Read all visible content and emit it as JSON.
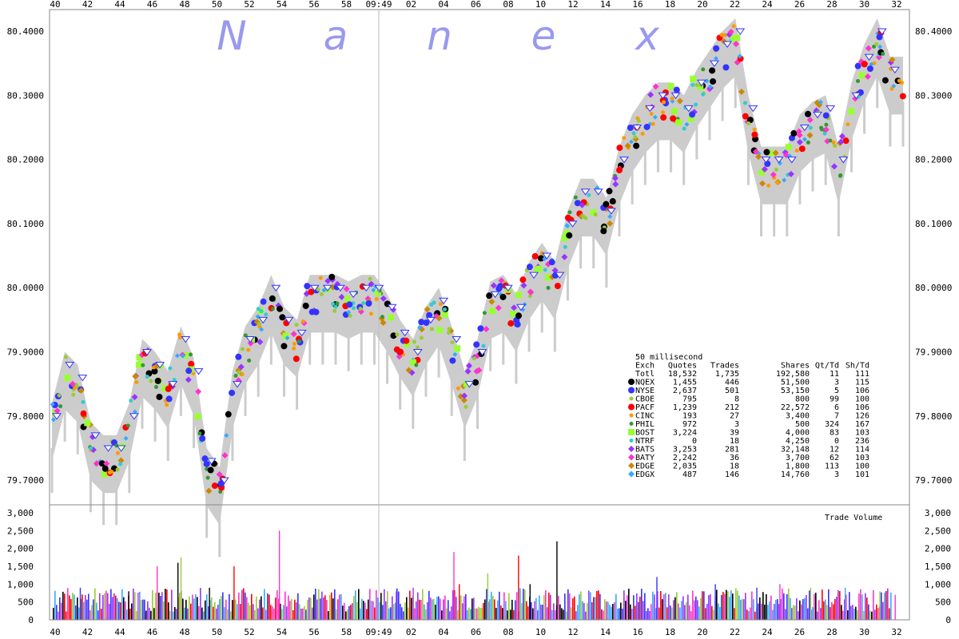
{
  "chart_data": {
    "type": "scatter",
    "watermark": [
      "N",
      "a",
      "n",
      "e",
      "x"
    ],
    "x_ticks_top": [
      "40",
      "42",
      "44",
      "46",
      "48",
      "50",
      "52",
      "54",
      "56",
      "58",
      "09:49",
      "02",
      "04",
      "06",
      "08",
      "10",
      "12",
      "14",
      "16",
      "18",
      "20",
      "22",
      "24",
      "26",
      "28",
      "30",
      "32"
    ],
    "x_ticks_bottom": [
      "40",
      "42",
      "44",
      "46",
      "48",
      "50",
      "52",
      "54",
      "56",
      "58",
      "09:49",
      "02",
      "04",
      "06",
      "08",
      "10",
      "12",
      "14",
      "16",
      "18",
      "20",
      "22",
      "24",
      "26",
      "28",
      "30",
      "32"
    ],
    "price_ticks": [
      "80.4000",
      "80.3000",
      "80.2000",
      "80.1000",
      "80.0000",
      "79.9000",
      "79.8000",
      "79.7000"
    ],
    "ylim": [
      79.65,
      80.42
    ],
    "volume_ticks": [
      "3,000",
      "2,500",
      "2,000",
      "1,500",
      "1,000",
      "500",
      "0"
    ],
    "volume_ylim": [
      0,
      3000
    ],
    "volume_label": "Trade Volume",
    "price_trace": [
      [
        0,
        79.8
      ],
      [
        1,
        79.88
      ],
      [
        2,
        79.86
      ],
      [
        3,
        79.77
      ],
      [
        4,
        79.75
      ],
      [
        5,
        79.75
      ],
      [
        6,
        79.8
      ],
      [
        7,
        79.9
      ],
      [
        8,
        79.88
      ],
      [
        9,
        79.85
      ],
      [
        10,
        79.92
      ],
      [
        11,
        79.87
      ],
      [
        12,
        79.73
      ],
      [
        13,
        79.7
      ],
      [
        14,
        79.85
      ],
      [
        15,
        79.92
      ],
      [
        16,
        79.95
      ],
      [
        17,
        80.0
      ],
      [
        18,
        79.95
      ],
      [
        19,
        79.93
      ],
      [
        20,
        80.0
      ],
      [
        21,
        80.0
      ],
      [
        22,
        80.0
      ],
      [
        23,
        79.99
      ],
      [
        24,
        80.0
      ],
      [
        25,
        80.0
      ],
      [
        26,
        79.97
      ],
      [
        27,
        79.93
      ],
      [
        28,
        79.9
      ],
      [
        29,
        79.95
      ],
      [
        30,
        79.98
      ],
      [
        31,
        79.92
      ],
      [
        32,
        79.85
      ],
      [
        33,
        79.9
      ],
      [
        34,
        79.99
      ],
      [
        35,
        80.0
      ],
      [
        36,
        79.97
      ],
      [
        37,
        80.02
      ],
      [
        38,
        80.05
      ],
      [
        39,
        80.02
      ],
      [
        40,
        80.1
      ],
      [
        41,
        80.15
      ],
      [
        42,
        80.15
      ],
      [
        43,
        80.12
      ],
      [
        44,
        80.2
      ],
      [
        45,
        80.25
      ],
      [
        46,
        80.28
      ],
      [
        47,
        80.3
      ],
      [
        48,
        80.3
      ],
      [
        49,
        80.28
      ],
      [
        50,
        80.32
      ],
      [
        51,
        80.35
      ],
      [
        52,
        80.38
      ],
      [
        53,
        80.4
      ],
      [
        54,
        80.28
      ],
      [
        55,
        80.2
      ],
      [
        56,
        80.2
      ],
      [
        57,
        80.2
      ],
      [
        58,
        80.25
      ],
      [
        59,
        80.27
      ],
      [
        60,
        80.28
      ],
      [
        61,
        80.2
      ],
      [
        62,
        80.3
      ],
      [
        63,
        80.36
      ],
      [
        64,
        80.4
      ],
      [
        65,
        80.34
      ],
      [
        66,
        80.34
      ]
    ],
    "volume_spikes": [
      [
        4.0,
        900
      ],
      [
        10.3,
        800
      ],
      [
        14.0,
        1500
      ],
      [
        16.7,
        1600
      ],
      [
        17.1,
        1750
      ],
      [
        20.8,
        900
      ],
      [
        24.0,
        1500
      ],
      [
        29.9,
        2500
      ],
      [
        45.1,
        800
      ],
      [
        47.3,
        900
      ],
      [
        52.6,
        1900
      ],
      [
        53.3,
        1000
      ],
      [
        57.0,
        1300
      ],
      [
        61.0,
        1800
      ],
      [
        62.5,
        1000
      ],
      [
        66.0,
        2200
      ],
      [
        79.0,
        1200
      ],
      [
        86.6,
        1000
      ],
      [
        92.0,
        900
      ],
      [
        95.0,
        1000
      ],
      [
        99.0,
        900
      ],
      [
        103.5,
        900
      ],
      [
        108.0,
        800
      ],
      [
        110.0,
        700
      ]
    ],
    "legend": {
      "interval": "50 millisecond",
      "columns": [
        "Exch",
        "Quotes",
        "Trades",
        "Shares",
        "Qt/Td",
        "Sh/Td"
      ],
      "rows": [
        {
          "exch": "Totl",
          "quotes": "18,532",
          "trades": "1,735",
          "shares": "192,580",
          "qt_td": "11",
          "sh_td": "111",
          "color": "",
          "marker": "none"
        },
        {
          "exch": "NQEX",
          "quotes": "1,455",
          "trades": "446",
          "shares": "51,500",
          "qt_td": "3",
          "sh_td": "115",
          "color": "#000000",
          "marker": "circle-icon"
        },
        {
          "exch": "NYSE",
          "quotes": "2,637",
          "trades": "501",
          "shares": "53,150",
          "qt_td": "5",
          "sh_td": "106",
          "color": "#3333ff",
          "marker": "circle-icon"
        },
        {
          "exch": "CBOE",
          "quotes": "795",
          "trades": "8",
          "shares": "800",
          "qt_td": "99",
          "sh_td": "100",
          "color": "#99cc33",
          "marker": "small-circle-icon"
        },
        {
          "exch": "PACF",
          "quotes": "1,239",
          "trades": "212",
          "shares": "22,572",
          "qt_td": "6",
          "sh_td": "106",
          "color": "#ff0000",
          "marker": "circle-icon"
        },
        {
          "exch": "CINC",
          "quotes": "193",
          "trades": "27",
          "shares": "3,400",
          "qt_td": "7",
          "sh_td": "126",
          "color": "#ff9900",
          "marker": "small-circle-icon"
        },
        {
          "exch": "PHIL",
          "quotes": "972",
          "trades": "3",
          "shares": "500",
          "qt_td": "324",
          "sh_td": "167",
          "color": "#339933",
          "marker": "small-circle-icon"
        },
        {
          "exch": "BOST",
          "quotes": "3,224",
          "trades": "39",
          "shares": "4,000",
          "qt_td": "83",
          "sh_td": "103",
          "color": "#99ff33",
          "marker": "square-icon"
        },
        {
          "exch": "NTRF",
          "quotes": "0",
          "trades": "18",
          "shares": "4,250",
          "qt_td": "0",
          "sh_td": "236",
          "color": "#33cccc",
          "marker": "small-circle-icon"
        },
        {
          "exch": "BATS",
          "quotes": "3,253",
          "trades": "281",
          "shares": "32,148",
          "qt_td": "12",
          "sh_td": "114",
          "color": "#9933ff",
          "marker": "diamond-icon"
        },
        {
          "exch": "BATY",
          "quotes": "2,242",
          "trades": "36",
          "shares": "3,700",
          "qt_td": "62",
          "sh_td": "103",
          "color": "#ff33cc",
          "marker": "diamond-icon"
        },
        {
          "exch": "EDGE",
          "quotes": "2,035",
          "trades": "18",
          "shares": "1,800",
          "qt_td": "113",
          "sh_td": "100",
          "color": "#cc8800",
          "marker": "diamond-icon"
        },
        {
          "exch": "EDGX",
          "quotes": "487",
          "trades": "146",
          "shares": "14,760",
          "qt_td": "3",
          "sh_td": "101",
          "color": "#33aaff",
          "marker": "small-diamond-icon"
        }
      ]
    }
  }
}
